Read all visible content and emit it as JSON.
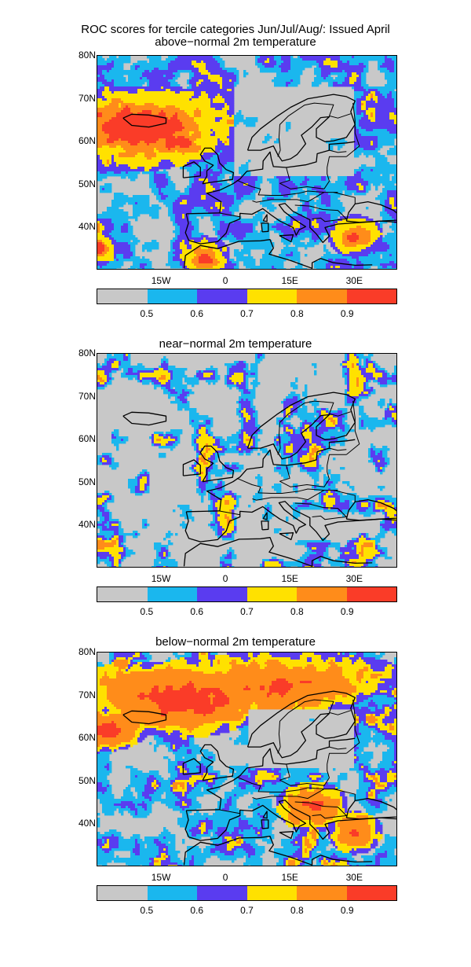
{
  "figure": {
    "title": "ROC scores for tercile categories Jun/Jul/Aug/: Issued April",
    "lat_labels": [
      "80N",
      "70N",
      "60N",
      "50N",
      "40N"
    ],
    "lon_labels": [
      "15W",
      "0",
      "15E",
      "30E"
    ],
    "colorbar": {
      "colors": [
        "#c8c8c8",
        "#1ab7ee",
        "#5a3cf0",
        "#ffe100",
        "#ff8c1a",
        "#fa3c28"
      ],
      "labels": [
        "0.5",
        "0.6",
        "0.7",
        "0.8",
        "0.9"
      ]
    }
  },
  "panels": [
    {
      "subtitle": "above−normal 2m temperature",
      "weights": [
        0.32,
        0.26,
        0.22,
        0.11,
        0.05,
        0.04
      ],
      "features": [
        {
          "lon": -20,
          "lat": 63,
          "r": 10,
          "level": 5
        },
        {
          "lon": -12,
          "lat": 60,
          "r": 6,
          "level": 4
        },
        {
          "lon": -30,
          "lat": 35,
          "r": 4,
          "level": 5
        },
        {
          "lon": -5,
          "lat": 33,
          "r": 5,
          "level": 4
        },
        {
          "lon": 30,
          "lat": 38,
          "r": 5,
          "level": 4
        }
      ],
      "gray_zone": {
        "lon0": 2,
        "lon1": 30,
        "lat0": 52,
        "lat1": 73
      }
    },
    {
      "subtitle": "near−normal 2m temperature",
      "weights": [
        0.62,
        0.18,
        0.12,
        0.07,
        0.01,
        0.0
      ],
      "features": [],
      "gray_zone": {
        "lon0": -25,
        "lon1": 40,
        "lat0": 30,
        "lat1": 80
      }
    },
    {
      "subtitle": "below−normal 2m temperature",
      "weights": [
        0.27,
        0.22,
        0.14,
        0.13,
        0.2,
        0.04
      ],
      "features": [
        {
          "lon": -10,
          "lat": 69,
          "r": 9,
          "level": 5
        },
        {
          "lon": 12,
          "lat": 72,
          "r": 8,
          "level": 4
        },
        {
          "lon": -28,
          "lat": 62,
          "r": 5,
          "level": 5
        },
        {
          "lon": 20,
          "lat": 44,
          "r": 6,
          "level": 4
        },
        {
          "lon": 30,
          "lat": 38,
          "r": 5,
          "level": 4
        }
      ],
      "gray_zone": {
        "lon0": 5,
        "lon1": 30,
        "lat0": 53,
        "lat1": 67
      }
    }
  ]
}
